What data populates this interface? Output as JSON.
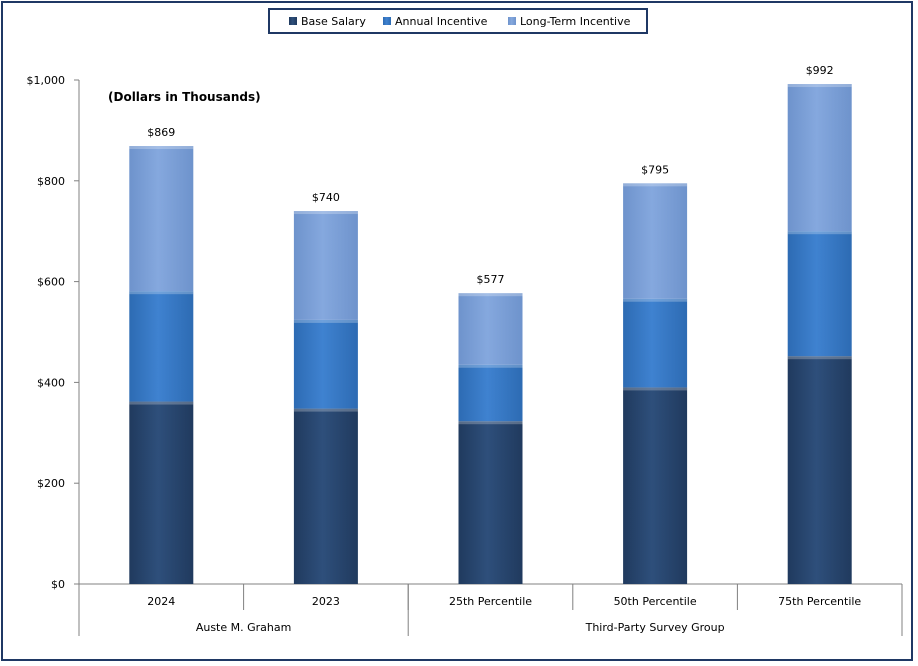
{
  "chart_data": {
    "type": "bar",
    "stacked": true,
    "note": "(Dollars in Thousands)",
    "categories": [
      "2024",
      "2023",
      "25th Percentile",
      "50th Percentile",
      "75th Percentile"
    ],
    "groups": [
      {
        "label": "Auste M. Graham",
        "categories": [
          "2024",
          "2023"
        ]
      },
      {
        "label": "Third-Party Survey Group",
        "categories": [
          "25th Percentile",
          "50th Percentile",
          "75th Percentile"
        ]
      }
    ],
    "series": [
      {
        "name": "Base Salary",
        "color": "#2b4a74",
        "values": [
          362,
          348,
          323,
          390,
          452
        ]
      },
      {
        "name": "Annual Incentive",
        "color": "#3a7cc9",
        "values": [
          219,
          176,
          112,
          176,
          248
        ]
      },
      {
        "name": "Long-Term Incentive",
        "color": "#7fa3db",
        "values": [
          288,
          216,
          142,
          229,
          292
        ]
      }
    ],
    "totals": [
      869,
      740,
      577,
      795,
      992
    ],
    "total_labels": [
      "$869",
      "$740",
      "$577",
      "$795",
      "$992"
    ],
    "ylim": [
      0,
      1000
    ],
    "yticks": [
      0,
      200,
      400,
      600,
      800,
      1000
    ],
    "ytick_labels": [
      "$0",
      "$200",
      "$400",
      "$600",
      "$800",
      "$1,000"
    ],
    "legend_position": "top-center",
    "grid": false
  }
}
